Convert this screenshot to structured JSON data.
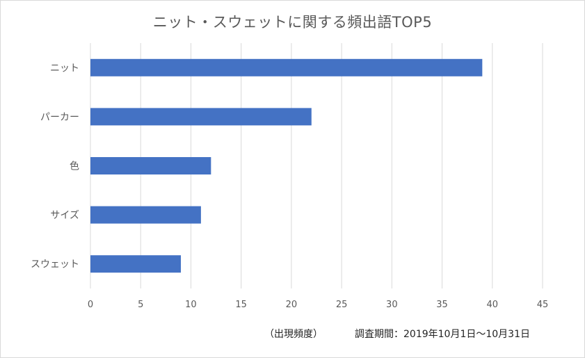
{
  "chart_data": {
    "type": "bar",
    "orientation": "horizontal",
    "title": "ニット・スウェットに関する頻出語TOP5",
    "categories": [
      "ニット",
      "パーカー",
      "色",
      "サイズ",
      "スウェット"
    ],
    "values": [
      39,
      22,
      12,
      11,
      9
    ],
    "xlabel": "（出現頻度）",
    "xlim": [
      0,
      45
    ],
    "xticks": [
      0,
      5,
      10,
      15,
      20,
      25,
      30,
      35,
      40,
      45
    ],
    "grid": true,
    "bar_color": "#4472c4",
    "grid_color": "#d9d9d9"
  },
  "footer": {
    "unit_label": "（出現頻度）",
    "period_label": "調査期間：2019年10月1日～10月31日"
  }
}
